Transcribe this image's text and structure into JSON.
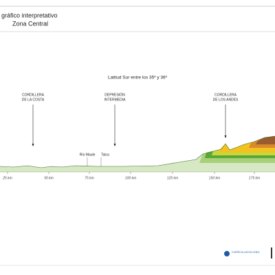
{
  "header": {
    "title": [
      "gráfico interpretativo",
      "Zona Central"
    ],
    "subtitle": "Latitud Sur entre los 35º y 36º"
  },
  "regions": [
    [
      "CORDILLERA",
      "DE LA COSTA"
    ],
    [
      "DEPRESIÓN",
      "INTERMEDIA"
    ],
    [
      "CORDILLERA",
      "DE LOS ANDES"
    ]
  ],
  "places": [
    "Río Maule",
    "Talca"
  ],
  "axis": [
    "25 km",
    "50 km",
    "75 km",
    "100 km",
    "125 km",
    "150 km",
    "175 km"
  ],
  "footer": {
    "logo": "CURRÍCULUM EN LÍNEA"
  }
}
